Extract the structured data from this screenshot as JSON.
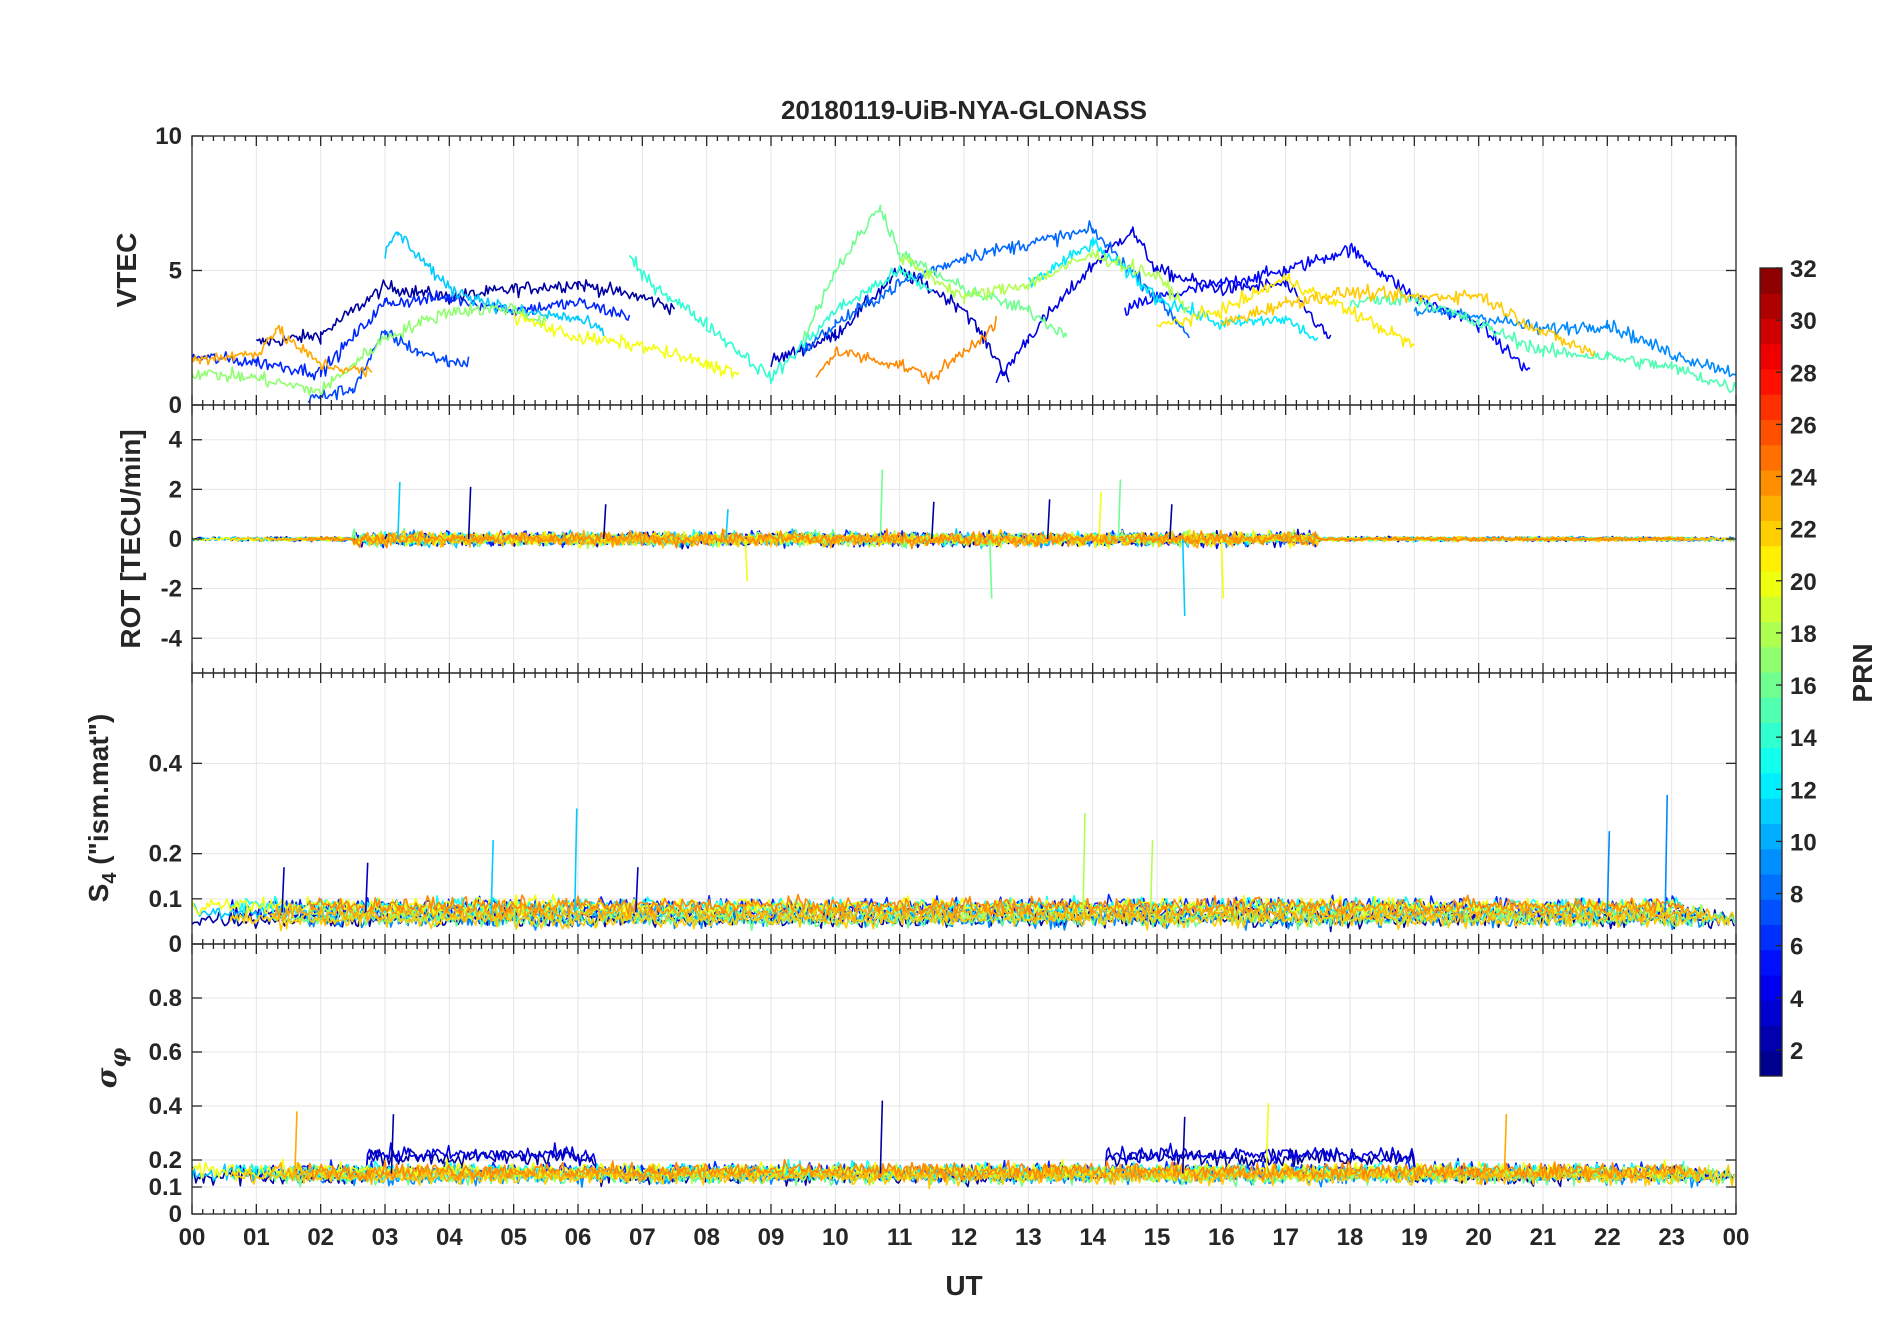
{
  "chart_data": {
    "type": "line",
    "title": "20180119-UiB-NYA-GLONASS",
    "xlabel": "UT",
    "x_tick_labels": [
      "00",
      "01",
      "02",
      "03",
      "04",
      "05",
      "06",
      "07",
      "08",
      "09",
      "10",
      "11",
      "12",
      "13",
      "14",
      "15",
      "16",
      "17",
      "18",
      "19",
      "20",
      "21",
      "22",
      "23",
      "00"
    ],
    "xlim": [
      0,
      24
    ],
    "grid": true,
    "colormap": "jet",
    "colorbar": {
      "label": "PRN",
      "range": [
        1,
        32
      ],
      "tick_labels": [
        "2",
        "4",
        "6",
        "8",
        "10",
        "12",
        "14",
        "16",
        "18",
        "20",
        "22",
        "24",
        "26",
        "28",
        "30",
        "32"
      ],
      "tick_values": [
        2,
        4,
        6,
        8,
        10,
        12,
        14,
        16,
        18,
        20,
        22,
        24,
        26,
        28,
        30,
        32
      ],
      "levels": 32
    },
    "panels": [
      {
        "id": "vtec",
        "ylabel": "VTEC",
        "ylim": [
          0,
          10
        ],
        "y_ticks": [
          0,
          5,
          10
        ],
        "y_tick_labels": [
          "0",
          "5",
          "10"
        ],
        "series": [
          {
            "prn": 2,
            "x": [
              1.0,
              2,
              3,
              4,
              5,
              6,
              7,
              7.5
            ],
            "values": [
              2.3,
              2.6,
              4.4,
              4.0,
              4.3,
              4.5,
              4.0,
              3.6
            ]
          },
          {
            "prn": 3,
            "x": [
              9.0,
              10,
              11,
              12,
              12.7
            ],
            "values": [
              1.6,
              2.6,
              5.0,
              3.6,
              1.0
            ]
          },
          {
            "prn": 4,
            "x": [
              12.5,
              13,
              14,
              14.6,
              15,
              16,
              17,
              17.7
            ],
            "values": [
              0.8,
              2.5,
              5.2,
              6.5,
              5.0,
              4.3,
              4.5,
              2.4
            ]
          },
          {
            "prn": 5,
            "x": [
              14.5,
              15,
              16,
              17,
              18,
              19,
              20,
              20.8
            ],
            "values": [
              3.5,
              4.0,
              4.5,
              5.0,
              5.8,
              4.0,
              3.0,
              1.2
            ]
          },
          {
            "prn": 6,
            "x": [
              0.0,
              1,
              2,
              3,
              4,
              5,
              6,
              6.8
            ],
            "values": [
              1.8,
              1.6,
              1.2,
              3.8,
              4.0,
              3.5,
              3.8,
              3.3
            ]
          },
          {
            "prn": 7,
            "x": [
              1.8,
              2.5,
              3,
              3.5,
              4,
              4.3
            ],
            "values": [
              0.2,
              0.6,
              2.7,
              2.0,
              1.6,
              1.6
            ]
          },
          {
            "prn": 8,
            "x": [
              9.5,
              10,
              11,
              12,
              13,
              14,
              15,
              15.5
            ],
            "values": [
              2.0,
              3.0,
              4.5,
              5.5,
              6.0,
              6.5,
              4.0,
              2.6
            ]
          },
          {
            "prn": 9,
            "x": [
              19.0,
              20,
              21,
              22,
              23,
              24
            ],
            "values": [
              3.5,
              3.3,
              2.8,
              3.0,
              1.9,
              1.2
            ]
          },
          {
            "prn": 11,
            "x": [
              3.0,
              3.2,
              4,
              5,
              6,
              6.4
            ],
            "values": [
              5.6,
              6.4,
              4.3,
              3.5,
              3.2,
              2.7
            ]
          },
          {
            "prn": 12,
            "x": [
              13.0,
              14,
              15,
              16,
              17,
              17.5
            ],
            "values": [
              4.5,
              6.0,
              4.0,
              3.0,
              3.2,
              2.4
            ]
          },
          {
            "prn": 14,
            "x": [
              6.8,
              7,
              8,
              9,
              10,
              11,
              11.5
            ],
            "values": [
              5.5,
              4.8,
              3.0,
              1.0,
              3.5,
              5.0,
              4.2
            ]
          },
          {
            "prn": 15,
            "x": [
              18.0,
              19,
              20,
              21,
              22,
              23,
              24
            ],
            "values": [
              3.8,
              4.0,
              3.0,
              2.0,
              1.8,
              1.4,
              0.6
            ]
          },
          {
            "prn": 16,
            "x": [
              9.5,
              10,
              10.7,
              11,
              12,
              13,
              13.6
            ],
            "values": [
              2.5,
              5.0,
              7.4,
              5.6,
              4.3,
              3.5,
              2.6
            ]
          },
          {
            "prn": 17,
            "x": [
              0.0,
              1,
              2,
              3,
              4,
              5,
              5.5
            ],
            "values": [
              1.2,
              1.0,
              0.5,
              2.5,
              3.5,
              3.6,
              3.0
            ]
          },
          {
            "prn": 18,
            "x": [
              11.0,
              12,
              13,
              14,
              15,
              15.5
            ],
            "values": [
              5.5,
              4.0,
              4.5,
              5.6,
              4.8,
              3.5
            ]
          },
          {
            "prn": 20,
            "x": [
              5.0,
              6,
              7,
              8,
              8.5
            ],
            "values": [
              3.3,
              2.5,
              2.2,
              1.5,
              1.2
            ]
          },
          {
            "prn": 21,
            "x": [
              15.0,
              16,
              17,
              18,
              19
            ],
            "values": [
              2.9,
              3.5,
              4.7,
              3.5,
              2.2
            ]
          },
          {
            "prn": 22,
            "x": [
              16.0,
              17,
              18,
              19,
              20,
              21,
              21.8
            ],
            "values": [
              3.0,
              3.8,
              4.2,
              4.0,
              4.1,
              2.7,
              1.9
            ]
          },
          {
            "prn": 23,
            "x": [
              0.0,
              1,
              1.3,
              2,
              2.8
            ],
            "values": [
              1.7,
              1.9,
              2.8,
              1.5,
              1.2
            ]
          },
          {
            "prn": 24,
            "x": [
              9.7,
              10,
              11,
              11.5,
              12,
              12.5
            ],
            "values": [
              1.0,
              2.0,
              1.5,
              1.0,
              2.0,
              3.0
            ]
          }
        ]
      },
      {
        "id": "rot",
        "ylabel": "ROT [TECU/min]",
        "ylim": [
          -5.4,
          5.4
        ],
        "y_ticks": [
          -4,
          -2,
          0,
          2,
          4
        ],
        "y_tick_labels": [
          "-4",
          "-2",
          "0",
          "2",
          "4"
        ],
        "noise_baseline": 0,
        "series": [
          {
            "prn": 2,
            "x": [
              3,
              4.3,
              6.4,
              11.5,
              13.3,
              15.2
            ],
            "values": [
              0.2,
              2.1,
              1.4,
              1.5,
              1.6,
              1.4
            ]
          },
          {
            "prn": 11,
            "x": [
              3.2,
              8.3,
              15.4
            ],
            "values": [
              2.3,
              1.2,
              -3.1
            ]
          },
          {
            "prn": 16,
            "x": [
              10.7,
              12.4,
              14.4
            ],
            "values": [
              2.8,
              -2.4,
              2.4
            ]
          },
          {
            "prn": 20,
            "x": [
              8.6,
              14.1,
              16.0
            ],
            "values": [
              -1.7,
              1.9,
              -2.4
            ]
          }
        ]
      },
      {
        "id": "s4",
        "ylabel": "S4 (\"ism.mat\")",
        "ylim": [
          0,
          0.6
        ],
        "y_ticks": [
          0,
          0.1,
          0.2,
          0.4
        ],
        "y_tick_labels": [
          "0",
          "0.1",
          "0.2",
          "0.4"
        ],
        "noise_baseline": 0.07,
        "series": [
          {
            "prn": 11,
            "x": [
              4.65,
              5.95
            ],
            "values": [
              0.23,
              0.3
            ]
          },
          {
            "prn": 9,
            "x": [
              22.0,
              22.9
            ],
            "values": [
              0.25,
              0.33
            ]
          },
          {
            "prn": 18,
            "x": [
              13.85,
              14.9
            ],
            "values": [
              0.29,
              0.23
            ]
          },
          {
            "prn": 3,
            "x": [
              1.4,
              2.7,
              6.9
            ],
            "values": [
              0.17,
              0.18,
              0.17
            ]
          }
        ]
      },
      {
        "id": "sigma_phi",
        "ylabel": "σφ",
        "ylim": [
          0,
          1.0
        ],
        "y_ticks": [
          0,
          0.1,
          0.2,
          0.4,
          0.6,
          0.8
        ],
        "y_tick_labels": [
          "0",
          "0.1",
          "0.2",
          "0.4",
          "0.6",
          "0.8"
        ],
        "noise_baseline": 0.15,
        "series": [
          {
            "prn": 2,
            "x": [
              3.1,
              10.7,
              15.4
            ],
            "values": [
              0.37,
              0.42,
              0.36
            ]
          },
          {
            "prn": 23,
            "x": [
              1.6,
              20.4
            ],
            "values": [
              0.38,
              0.37
            ]
          },
          {
            "prn": 20,
            "x": [
              16.7
            ],
            "values": [
              0.41
            ]
          }
        ]
      }
    ]
  }
}
